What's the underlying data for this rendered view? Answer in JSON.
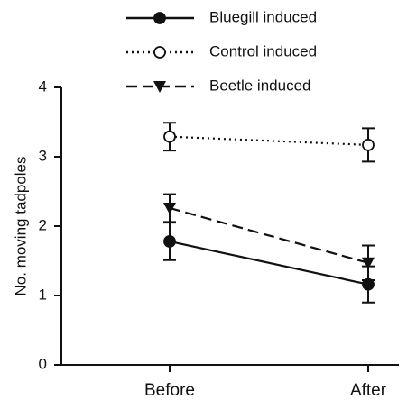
{
  "chart_data": {
    "type": "line",
    "categories": [
      "Before",
      "After"
    ],
    "y_label": "No. moving tadpoles",
    "ylim": [
      0,
      4
    ],
    "yticks": [
      0,
      1,
      2,
      3,
      4
    ],
    "series": [
      {
        "name": "Bluegill induced",
        "color": "#111111",
        "line_style": "solid",
        "marker": "filled-circle",
        "values": [
          1.78,
          1.16
        ],
        "errors": [
          0.27,
          0.26
        ]
      },
      {
        "name": "Control induced",
        "color": "#111111",
        "line_style": "dotted",
        "marker": "open-circle",
        "values": [
          3.29,
          3.17
        ],
        "errors": [
          0.2,
          0.24
        ]
      },
      {
        "name": "Beetle induced",
        "color": "#111111",
        "line_style": "dashed",
        "marker": "triangle-down",
        "values": [
          2.26,
          1.47
        ],
        "errors": [
          0.2,
          0.25
        ]
      }
    ]
  }
}
